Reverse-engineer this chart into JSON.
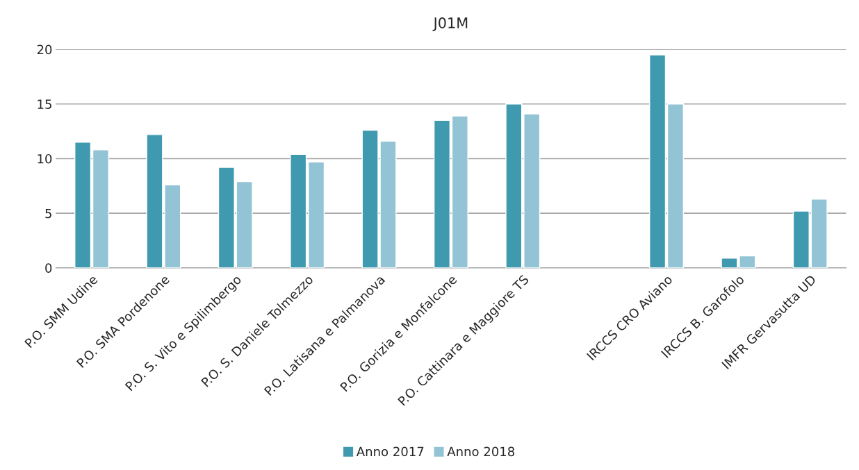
{
  "chart_data": {
    "type": "bar",
    "title": "J01M",
    "categories": [
      "P.O. SMM Udine",
      "P.O. SMA Pordenone",
      "P.O. S. Vito e Spilimbergo",
      "P.O. S. Daniele Tolmezzo",
      "P.O. Latisana e Palmanova",
      "P.O. Gorizia e Monfalcone",
      "P.O. Cattinara e Maggiore TS",
      null,
      "IRCCS CRO Aviano",
      "IRCCS B. Garofolo",
      "IMFR Gervasutta UD"
    ],
    "series": [
      {
        "name": "Anno 2017",
        "color": "#3f9ab0",
        "values": [
          11.5,
          12.2,
          9.2,
          10.4,
          12.6,
          13.5,
          15.0,
          null,
          19.5,
          0.9,
          5.2
        ]
      },
      {
        "name": "Anno 2018",
        "color": "#92c4d5",
        "values": [
          10.8,
          7.6,
          7.9,
          9.7,
          11.6,
          13.9,
          14.1,
          null,
          15.0,
          1.1,
          6.3
        ]
      }
    ],
    "ylim": [
      0,
      20
    ],
    "yticks": [
      0,
      5,
      10,
      15,
      20
    ],
    "grid": "y",
    "legend": "bottom"
  }
}
